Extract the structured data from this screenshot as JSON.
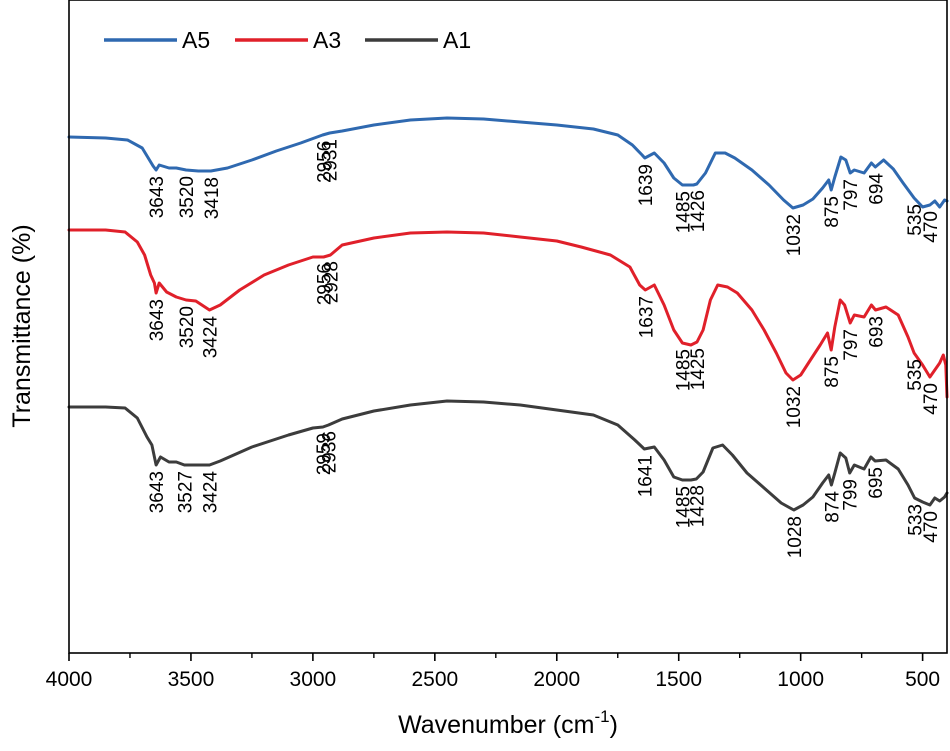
{
  "chart_data": {
    "type": "line",
    "title": "",
    "xlabel": "Wavenumber (cm",
    "xlabel_superscript": "-1",
    "xlabel_suffix": ")",
    "ylabel": "Transmittance (%)",
    "xlim": [
      4000,
      400
    ],
    "x_reversed": true,
    "xticks": [
      4000,
      3500,
      3000,
      2500,
      2000,
      1500,
      1000,
      500
    ],
    "y_tick_labels": false,
    "legend_position": "top-left",
    "series": [
      {
        "name": "A5",
        "color": "#2f69b0",
        "offset": 0,
        "points": [
          [
            4000,
            32
          ],
          [
            3850,
            33
          ],
          [
            3760,
            35
          ],
          [
            3700,
            43
          ],
          [
            3655,
            61
          ],
          [
            3643,
            65
          ],
          [
            3630,
            60
          ],
          [
            3590,
            63
          ],
          [
            3560,
            63
          ],
          [
            3520,
            65
          ],
          [
            3470,
            66
          ],
          [
            3418,
            66
          ],
          [
            3350,
            63
          ],
          [
            3250,
            55
          ],
          [
            3150,
            46
          ],
          [
            3050,
            38
          ],
          [
            2960,
            30
          ],
          [
            2931,
            28
          ],
          [
            2880,
            26
          ],
          [
            2750,
            20
          ],
          [
            2600,
            15
          ],
          [
            2450,
            13
          ],
          [
            2300,
            14
          ],
          [
            2150,
            17
          ],
          [
            2000,
            20
          ],
          [
            1850,
            24
          ],
          [
            1750,
            30
          ],
          [
            1690,
            40
          ],
          [
            1650,
            50
          ],
          [
            1639,
            53
          ],
          [
            1600,
            48
          ],
          [
            1560,
            58
          ],
          [
            1520,
            73
          ],
          [
            1485,
            80
          ],
          [
            1440,
            80
          ],
          [
            1426,
            79
          ],
          [
            1390,
            68
          ],
          [
            1350,
            48
          ],
          [
            1310,
            48
          ],
          [
            1270,
            53
          ],
          [
            1200,
            65
          ],
          [
            1130,
            80
          ],
          [
            1070,
            95
          ],
          [
            1032,
            103
          ],
          [
            990,
            100
          ],
          [
            950,
            94
          ],
          [
            910,
            83
          ],
          [
            885,
            75
          ],
          [
            875,
            85
          ],
          [
            860,
            72
          ],
          [
            835,
            52
          ],
          [
            815,
            55
          ],
          [
            797,
            68
          ],
          [
            780,
            65
          ],
          [
            740,
            68
          ],
          [
            710,
            58
          ],
          [
            694,
            62
          ],
          [
            660,
            55
          ],
          [
            620,
            64
          ],
          [
            580,
            78
          ],
          [
            535,
            93
          ],
          [
            500,
            102
          ],
          [
            470,
            100
          ],
          [
            450,
            96
          ],
          [
            430,
            102
          ],
          [
            410,
            95
          ],
          [
            400,
            96
          ]
        ]
      },
      {
        "name": "A3",
        "color": "#e0202a",
        "offset": 0,
        "points": [
          [
            4000,
            125
          ],
          [
            3850,
            125
          ],
          [
            3770,
            127
          ],
          [
            3720,
            137
          ],
          [
            3690,
            150
          ],
          [
            3665,
            170
          ],
          [
            3650,
            178
          ],
          [
            3643,
            188
          ],
          [
            3630,
            178
          ],
          [
            3600,
            187
          ],
          [
            3560,
            192
          ],
          [
            3520,
            195
          ],
          [
            3480,
            196
          ],
          [
            3424,
            205
          ],
          [
            3380,
            200
          ],
          [
            3300,
            185
          ],
          [
            3200,
            170
          ],
          [
            3100,
            160
          ],
          [
            3000,
            152
          ],
          [
            2956,
            152
          ],
          [
            2928,
            150
          ],
          [
            2880,
            140
          ],
          [
            2750,
            133
          ],
          [
            2600,
            128
          ],
          [
            2450,
            127
          ],
          [
            2300,
            128
          ],
          [
            2150,
            132
          ],
          [
            2000,
            136
          ],
          [
            1900,
            142
          ],
          [
            1780,
            150
          ],
          [
            1700,
            162
          ],
          [
            1660,
            180
          ],
          [
            1637,
            185
          ],
          [
            1600,
            180
          ],
          [
            1560,
            200
          ],
          [
            1520,
            225
          ],
          [
            1485,
            238
          ],
          [
            1450,
            240
          ],
          [
            1425,
            237
          ],
          [
            1400,
            225
          ],
          [
            1370,
            195
          ],
          [
            1340,
            180
          ],
          [
            1300,
            182
          ],
          [
            1260,
            188
          ],
          [
            1200,
            205
          ],
          [
            1150,
            225
          ],
          [
            1100,
            248
          ],
          [
            1060,
            268
          ],
          [
            1032,
            275
          ],
          [
            1000,
            270
          ],
          [
            960,
            255
          ],
          [
            920,
            240
          ],
          [
            890,
            228
          ],
          [
            875,
            245
          ],
          [
            860,
            222
          ],
          [
            838,
            195
          ],
          [
            820,
            200
          ],
          [
            797,
            218
          ],
          [
            780,
            210
          ],
          [
            740,
            212
          ],
          [
            710,
            200
          ],
          [
            693,
            205
          ],
          [
            650,
            202
          ],
          [
            600,
            210
          ],
          [
            560,
            232
          ],
          [
            535,
            248
          ],
          [
            500,
            260
          ],
          [
            470,
            272
          ],
          [
            450,
            265
          ],
          [
            430,
            258
          ],
          [
            415,
            250
          ],
          [
            405,
            260
          ],
          [
            400,
            292
          ]
        ]
      },
      {
        "name": "A1",
        "color": "#3c3c3c",
        "offset": 0,
        "points": [
          [
            4000,
            302
          ],
          [
            3850,
            302
          ],
          [
            3770,
            303
          ],
          [
            3720,
            313
          ],
          [
            3680,
            332
          ],
          [
            3660,
            340
          ],
          [
            3643,
            360
          ],
          [
            3625,
            352
          ],
          [
            3590,
            357
          ],
          [
            3560,
            357
          ],
          [
            3527,
            360
          ],
          [
            3480,
            360
          ],
          [
            3424,
            360
          ],
          [
            3380,
            356
          ],
          [
            3250,
            342
          ],
          [
            3100,
            330
          ],
          [
            3000,
            323
          ],
          [
            2959,
            322
          ],
          [
            2936,
            320
          ],
          [
            2880,
            314
          ],
          [
            2750,
            306
          ],
          [
            2600,
            300
          ],
          [
            2450,
            296
          ],
          [
            2300,
            297
          ],
          [
            2150,
            300
          ],
          [
            2000,
            305
          ],
          [
            1850,
            310
          ],
          [
            1750,
            320
          ],
          [
            1680,
            335
          ],
          [
            1641,
            344
          ],
          [
            1600,
            342
          ],
          [
            1560,
            355
          ],
          [
            1520,
            372
          ],
          [
            1485,
            375
          ],
          [
            1450,
            375
          ],
          [
            1428,
            374
          ],
          [
            1400,
            367
          ],
          [
            1360,
            343
          ],
          [
            1320,
            340
          ],
          [
            1280,
            350
          ],
          [
            1220,
            368
          ],
          [
            1150,
            383
          ],
          [
            1080,
            398
          ],
          [
            1028,
            405
          ],
          [
            990,
            400
          ],
          [
            950,
            392
          ],
          [
            910,
            378
          ],
          [
            885,
            370
          ],
          [
            874,
            380
          ],
          [
            860,
            368
          ],
          [
            838,
            348
          ],
          [
            815,
            353
          ],
          [
            799,
            368
          ],
          [
            780,
            360
          ],
          [
            740,
            364
          ],
          [
            712,
            352
          ],
          [
            695,
            356
          ],
          [
            650,
            355
          ],
          [
            600,
            364
          ],
          [
            560,
            380
          ],
          [
            533,
            393
          ],
          [
            500,
            397
          ],
          [
            470,
            400
          ],
          [
            450,
            393
          ],
          [
            430,
            396
          ],
          [
            410,
            392
          ],
          [
            400,
            388
          ]
        ]
      }
    ],
    "annotations": [
      {
        "series": "A5",
        "labels": [
          {
            "text": "3643",
            "x": 3643
          },
          {
            "text": "3520",
            "x": 3520
          },
          {
            "text": "3418",
            "x": 3418
          },
          {
            "text": "2956",
            "x": 2956
          },
          {
            "text": "2931",
            "x": 2931
          },
          {
            "text": "1639",
            "x": 1639
          },
          {
            "text": "1485",
            "x": 1485
          },
          {
            "text": "1426",
            "x": 1426
          },
          {
            "text": "1032",
            "x": 1032
          },
          {
            "text": "875",
            "x": 875
          },
          {
            "text": "797",
            "x": 797
          },
          {
            "text": "694",
            "x": 694
          },
          {
            "text": "535",
            "x": 535
          },
          {
            "text": "470",
            "x": 470
          }
        ]
      },
      {
        "series": "A3",
        "labels": [
          {
            "text": "3643",
            "x": 3643
          },
          {
            "text": "3520",
            "x": 3520
          },
          {
            "text": "3424",
            "x": 3424
          },
          {
            "text": "2956",
            "x": 2956
          },
          {
            "text": "2928",
            "x": 2928
          },
          {
            "text": "1637",
            "x": 1637
          },
          {
            "text": "1485",
            "x": 1485
          },
          {
            "text": "1425",
            "x": 1425
          },
          {
            "text": "1032",
            "x": 1032
          },
          {
            "text": "875",
            "x": 875
          },
          {
            "text": "797",
            "x": 797
          },
          {
            "text": "693",
            "x": 693
          },
          {
            "text": "535",
            "x": 535
          },
          {
            "text": "470",
            "x": 470
          }
        ]
      },
      {
        "series": "A1",
        "labels": [
          {
            "text": "3643",
            "x": 3643
          },
          {
            "text": "3527",
            "x": 3527
          },
          {
            "text": "3424",
            "x": 3424
          },
          {
            "text": "2959",
            "x": 2959
          },
          {
            "text": "2936",
            "x": 2936
          },
          {
            "text": "1641",
            "x": 1641
          },
          {
            "text": "1485",
            "x": 1485
          },
          {
            "text": "1428",
            "x": 1428
          },
          {
            "text": "1028",
            "x": 1028
          },
          {
            "text": "874",
            "x": 874
          },
          {
            "text": "799",
            "x": 799
          },
          {
            "text": "695",
            "x": 695
          },
          {
            "text": "533",
            "x": 533
          },
          {
            "text": "470",
            "x": 470
          }
        ]
      }
    ]
  }
}
